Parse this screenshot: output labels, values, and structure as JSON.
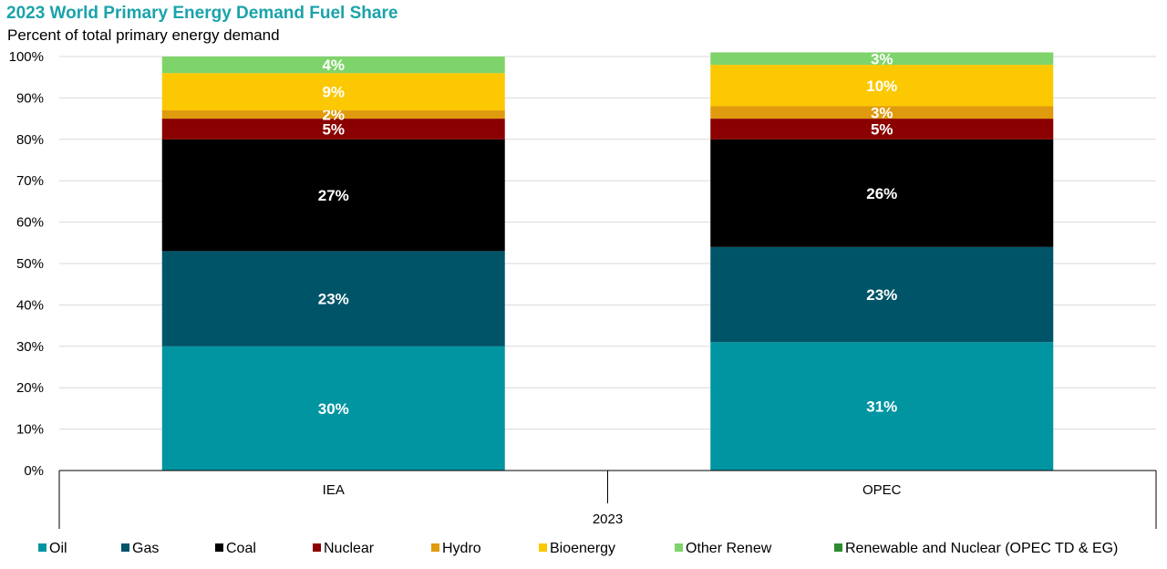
{
  "chart_data": {
    "type": "bar",
    "stacked": true,
    "title": "2023 World Primary Energy Demand Fuel Share",
    "subtitle": "Percent of total primary energy demand",
    "categories": [
      "IEA",
      "OPEC"
    ],
    "group_label": "2023",
    "ylim": [
      0,
      100
    ],
    "yticks": [
      "0%",
      "10%",
      "20%",
      "30%",
      "40%",
      "50%",
      "60%",
      "70%",
      "80%",
      "90%",
      "100%"
    ],
    "grid": true,
    "legend_position": "bottom",
    "series": [
      {
        "name": "Oil",
        "color": "#0095a1",
        "values": [
          30,
          31
        ],
        "labels": [
          "30%",
          "31%"
        ]
      },
      {
        "name": "Gas",
        "color": "#005468",
        "values": [
          23,
          23
        ],
        "labels": [
          "23%",
          "23%"
        ]
      },
      {
        "name": "Coal",
        "color": "#000000",
        "values": [
          27,
          26
        ],
        "labels": [
          "27%",
          "26%"
        ]
      },
      {
        "name": "Nuclear",
        "color": "#8b0000",
        "values": [
          5,
          5
        ],
        "labels": [
          "5%",
          "5%"
        ]
      },
      {
        "name": "Hydro",
        "color": "#e09a0e",
        "values": [
          2,
          3
        ],
        "labels": [
          "2%",
          "3%"
        ]
      },
      {
        "name": "Bioenergy",
        "color": "#fbc802",
        "values": [
          9,
          10
        ],
        "labels": [
          "9%",
          "10%"
        ]
      },
      {
        "name": "Other Renew",
        "color": "#7ed46a",
        "values": [
          4,
          3
        ],
        "labels": [
          "4%",
          "3%"
        ]
      },
      {
        "name": "Renewable and Nuclear (OPEC TD & EG)",
        "color": "#2e8b2e",
        "values": [
          0,
          0
        ],
        "labels": [
          "",
          ""
        ]
      }
    ]
  }
}
